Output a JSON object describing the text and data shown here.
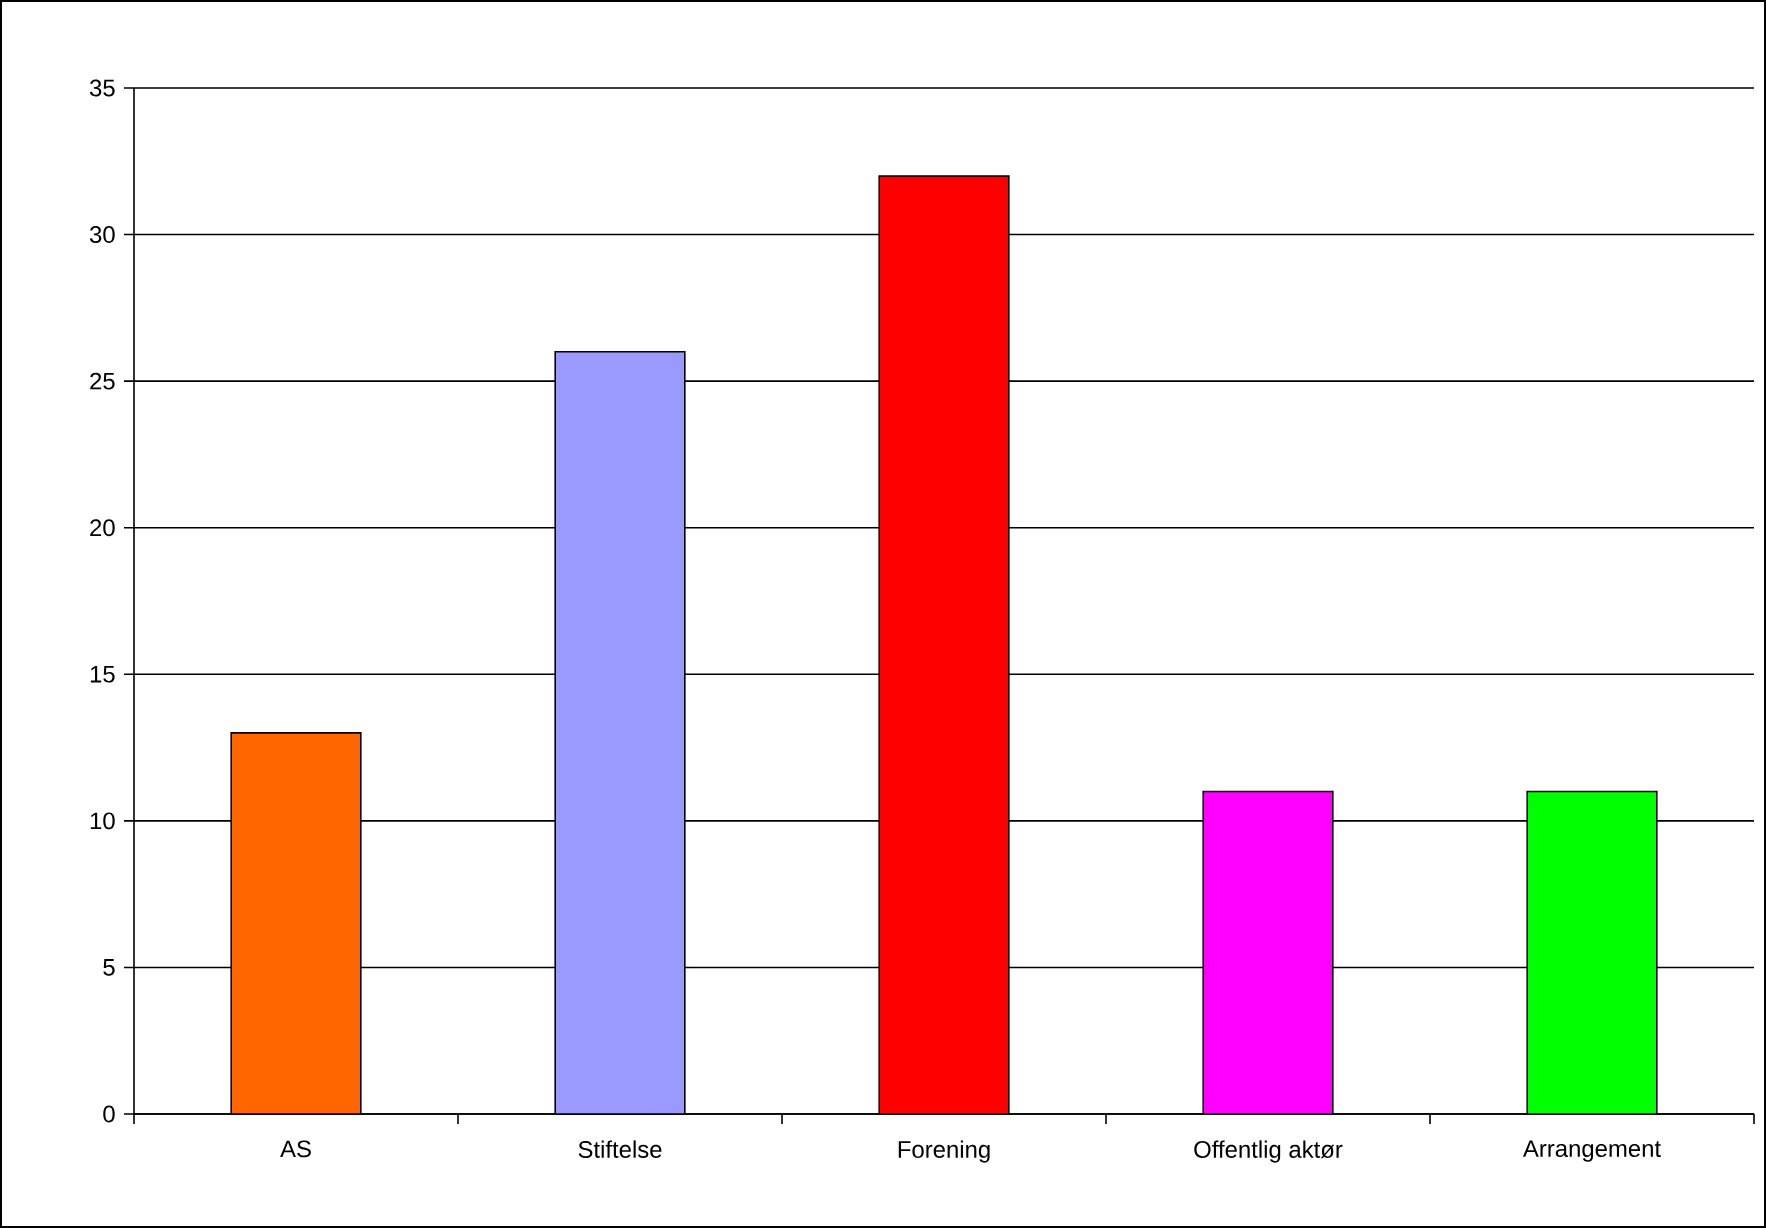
{
  "chart_data": {
    "type": "bar",
    "categories": [
      "AS",
      "Stiftelse",
      "Forening",
      "Offentlig aktør",
      "Arrangement"
    ],
    "values": [
      13,
      26,
      32,
      11,
      11
    ],
    "colors": [
      "#ff6600",
      "#9999ff",
      "#ff0000",
      "#ff00ff",
      "#00ff00"
    ],
    "ylim": [
      0,
      35
    ],
    "yticks": [
      0,
      5,
      10,
      15,
      20,
      25,
      30,
      35
    ],
    "grid": "y"
  }
}
